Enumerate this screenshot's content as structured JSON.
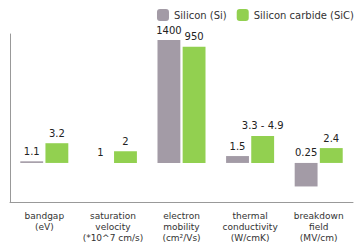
{
  "chart_data": {
    "type": "bar",
    "categories": [
      "bandgap\n(eV)",
      "saturation\nvelocity\n(*10^7 cm/s)",
      "electron\nmobility\n(cm²/Vs)",
      "thermal\nconductivity\n(W/cmK)",
      "breakdown\nfield\n(MV/cm)"
    ],
    "series": [
      {
        "name": "Silicon (Si)",
        "color": "#a39ba6",
        "values": [
          1.1,
          1,
          1400,
          1.5,
          0.25
        ]
      },
      {
        "name": "Silicon carbide (SiC)",
        "color": "#92d050",
        "values": [
          3.2,
          2,
          950,
          4.9,
          2.4
        ],
        "value_labels": [
          "3.2",
          "2",
          "950",
          "3.3 - 4.9",
          "2.4"
        ]
      }
    ],
    "ylim": [
      0.1,
      2000
    ],
    "log": "y",
    "grid": false,
    "legend": "top right",
    "data_labels": true,
    "tick_labels": "x"
  }
}
